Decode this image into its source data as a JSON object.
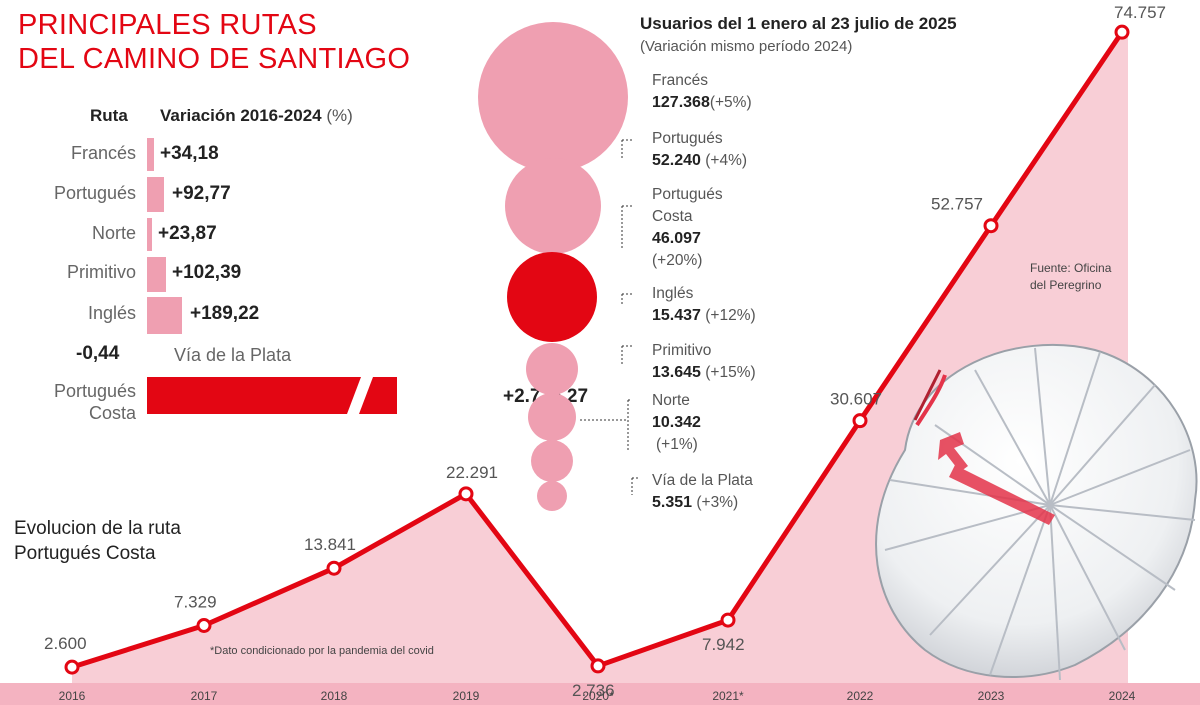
{
  "title": {
    "line1": "PRINCIPALES RUTAS",
    "line2": "DEL CAMINO DE SANTIAGO"
  },
  "variation": {
    "header_route": "Ruta",
    "header_var": "Variación 2016-2024",
    "header_unit": "(%)",
    "rows": [
      {
        "route": "Francés",
        "value": 34.18,
        "label": "+34,18"
      },
      {
        "route": "Portugués",
        "value": 92.77,
        "label": "+92,77"
      },
      {
        "route": "Norte",
        "value": 23.87,
        "label": "+23,87"
      },
      {
        "route": "Primitivo",
        "value": 102.39,
        "label": "+102,39"
      },
      {
        "route": "Inglés",
        "value": 189.22,
        "label": "+189,22"
      }
    ],
    "plata": {
      "label": "-0,44",
      "route": "Vía de la Plata",
      "value": -0.44
    },
    "costa": {
      "route_line1": "Portugués",
      "route_line2": "Costa",
      "label": "+2.775,27",
      "value": 2775.27
    }
  },
  "users": {
    "title": "Usuarios del 1 enero al 23 julio de 2025",
    "subtitle": "(Variación mismo período 2024)",
    "items": [
      {
        "name": "Francés",
        "value": 127368,
        "value_label": "127.368",
        "change": "(+5%)",
        "highlight": false
      },
      {
        "name": "Portugués",
        "value": 52240,
        "value_label": "52.240",
        "change": "(+4%)",
        "highlight": false
      },
      {
        "name": "Portugués Costa",
        "value": 46097,
        "value_label": "46.097",
        "change": "(+20%)",
        "highlight": true
      },
      {
        "name": "Inglés",
        "value": 15437,
        "value_label": "15.437",
        "change": "(+12%)",
        "highlight": false
      },
      {
        "name": "Primitivo",
        "value": 13645,
        "value_label": "13.645",
        "change": "(+15%)",
        "highlight": false
      },
      {
        "name": "Norte",
        "value": 10342,
        "value_label": "10.342",
        "change": "(+1%)",
        "highlight": false
      },
      {
        "name": "Vía de la Plata",
        "value": 5351,
        "value_label": "5.351",
        "change": "(+3%)",
        "highlight": false
      }
    ]
  },
  "evolution": {
    "title_line1": "Evolucion de la ruta",
    "title_line2": "Portugués Costa",
    "note": "*Dato condicionado por la pandemia del covid",
    "source": "Fuente: Oficina del Peregrino"
  },
  "chart_data": [
    {
      "type": "line",
      "title": "Evolucion de la ruta Portugués Costa",
      "x": [
        "2016",
        "2017",
        "2018",
        "2019",
        "2020*",
        "2021*",
        "2022",
        "2023",
        "2024"
      ],
      "y": [
        2600,
        7329,
        13841,
        22291,
        2736,
        7942,
        30607,
        52757,
        74757
      ],
      "labels": [
        "2.600",
        "7.329",
        "13.841",
        "22.291",
        "2.736",
        "7.942",
        "30.607",
        "52.757",
        "74.757"
      ],
      "ylim": [
        0,
        80000
      ],
      "grid": false,
      "colors": {
        "line": "#e30613",
        "area": "#f7c5cf"
      }
    },
    {
      "type": "bar",
      "title": "Variación 2016-2024 (%)",
      "categories": [
        "Francés",
        "Portugués",
        "Norte",
        "Primitivo",
        "Inglés",
        "Vía de la Plata",
        "Portugués Costa"
      ],
      "values": [
        34.18,
        92.77,
        23.87,
        102.39,
        189.22,
        -0.44,
        2775.27
      ]
    },
    {
      "type": "scatter",
      "title": "Usuarios del 1 enero al 23 julio de 2025",
      "categories": [
        "Francés",
        "Portugués",
        "Portugués Costa",
        "Inglés",
        "Primitivo",
        "Norte",
        "Vía de la Plata"
      ],
      "values": [
        127368,
        52240,
        46097,
        15437,
        13645,
        10342,
        5351
      ]
    }
  ],
  "colors": {
    "accent": "#e30613",
    "pink": "#ef9fb1",
    "area": "#f7c5cf"
  }
}
